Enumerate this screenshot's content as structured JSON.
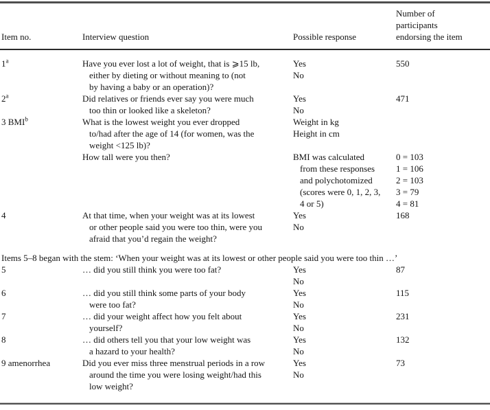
{
  "table": {
    "headers": [
      {
        "label": "Item no."
      },
      {
        "label": "Interview question"
      },
      {
        "label": "Possible response"
      },
      {
        "lines": [
          "Number of",
          "participants",
          "endorsing the item"
        ]
      }
    ],
    "rows": [
      {
        "item": "1",
        "item_sup": "a",
        "question": [
          {
            "text": "Have you ever lost a lot of weight, that is ⩾15 lb,",
            "indent": false
          },
          {
            "text": "either by dieting or without meaning to (not",
            "indent": true
          },
          {
            "text": "by having a baby or an operation)?",
            "indent": true
          }
        ],
        "response": [
          {
            "text": "Yes",
            "indent": false
          },
          {
            "text": "No",
            "indent": false
          }
        ],
        "count": [
          {
            "text": "550",
            "indent": false
          }
        ]
      },
      {
        "item": "2",
        "item_sup": "a",
        "question": [
          {
            "text": "Did relatives or friends ever say you were much",
            "indent": false
          },
          {
            "text": "too thin or looked like a skeleton?",
            "indent": true
          }
        ],
        "response": [
          {
            "text": "Yes",
            "indent": false
          },
          {
            "text": "No",
            "indent": false
          }
        ],
        "count": [
          {
            "text": "471",
            "indent": false
          }
        ]
      },
      {
        "item": "3 BMI",
        "item_sup": "b",
        "question": [
          {
            "text": "What is the lowest weight you ever dropped",
            "indent": false
          },
          {
            "text": "to/had after the age of 14 (for women, was the",
            "indent": true
          },
          {
            "text": "weight <125 lb)?",
            "indent": true
          }
        ],
        "response": [
          {
            "text": "Weight in kg",
            "indent": false
          },
          {
            "text": "Height in cm",
            "indent": false
          }
        ],
        "count": []
      },
      {
        "item": "",
        "question": [
          {
            "text": "How tall were you then?",
            "indent": false
          }
        ],
        "response": [
          {
            "text": "BMI was calculated",
            "indent": false
          },
          {
            "text": "from these responses",
            "indent": true
          },
          {
            "text": "and polychotomized",
            "indent": true
          },
          {
            "text": "(scores were 0, 1, 2, 3,",
            "indent": true
          },
          {
            "text": "4 or 5)",
            "indent": true
          }
        ],
        "count": [
          {
            "text": "0 = 103",
            "indent": false
          },
          {
            "text": "1 = 106",
            "indent": false
          },
          {
            "text": "2 = 103",
            "indent": false
          },
          {
            "text": "3 = 79",
            "indent": false
          },
          {
            "text": "4 = 81",
            "indent": false
          }
        ]
      },
      {
        "item": "4",
        "question": [
          {
            "text": "At that time, when your weight was at its lowest",
            "indent": false
          },
          {
            "text": "or other people said you were too thin, were you",
            "indent": true
          },
          {
            "text": "afraid that you’d regain the weight?",
            "indent": true
          }
        ],
        "response": [
          {
            "text": "Yes",
            "indent": false
          },
          {
            "text": "No",
            "indent": false
          }
        ],
        "count": [
          {
            "text": "168",
            "indent": false
          }
        ]
      },
      {
        "stem": "Items 5–8 began with the stem: ‘When your weight was at its lowest or other people said you were too thin …’"
      },
      {
        "item": "5",
        "question": [
          {
            "text": "… did you still think you were too fat?",
            "indent": false
          }
        ],
        "response": [
          {
            "text": "Yes",
            "indent": false
          },
          {
            "text": "No",
            "indent": false
          }
        ],
        "count": [
          {
            "text": "87",
            "indent": false
          }
        ]
      },
      {
        "item": "6",
        "question": [
          {
            "text": "… did you still think some parts of your body",
            "indent": false
          },
          {
            "text": "were too fat?",
            "indent": true
          }
        ],
        "response": [
          {
            "text": "Yes",
            "indent": false
          },
          {
            "text": "No",
            "indent": false
          }
        ],
        "count": [
          {
            "text": "115",
            "indent": false
          }
        ]
      },
      {
        "item": "7",
        "question": [
          {
            "text": "… did your weight affect how you felt about",
            "indent": false
          },
          {
            "text": "yourself?",
            "indent": true
          }
        ],
        "response": [
          {
            "text": "Yes",
            "indent": false
          },
          {
            "text": "No",
            "indent": false
          }
        ],
        "count": [
          {
            "text": "231",
            "indent": false
          }
        ]
      },
      {
        "item": "8",
        "question": [
          {
            "text": "… did others tell you that your low weight was",
            "indent": false
          },
          {
            "text": "a hazard to your health?",
            "indent": true
          }
        ],
        "response": [
          {
            "text": "Yes",
            "indent": false
          },
          {
            "text": "No",
            "indent": false
          }
        ],
        "count": [
          {
            "text": "132",
            "indent": false
          }
        ]
      },
      {
        "item": "9 amenorrhea",
        "question": [
          {
            "text": "Did you ever miss three menstrual periods in a row",
            "indent": false
          },
          {
            "text": "around the time you were losing weight/had this",
            "indent": true
          },
          {
            "text": "low weight?",
            "indent": true
          }
        ],
        "response": [
          {
            "text": "Yes",
            "indent": false
          },
          {
            "text": "No",
            "indent": false
          }
        ],
        "count": [
          {
            "text": "73",
            "indent": false
          }
        ]
      }
    ]
  }
}
